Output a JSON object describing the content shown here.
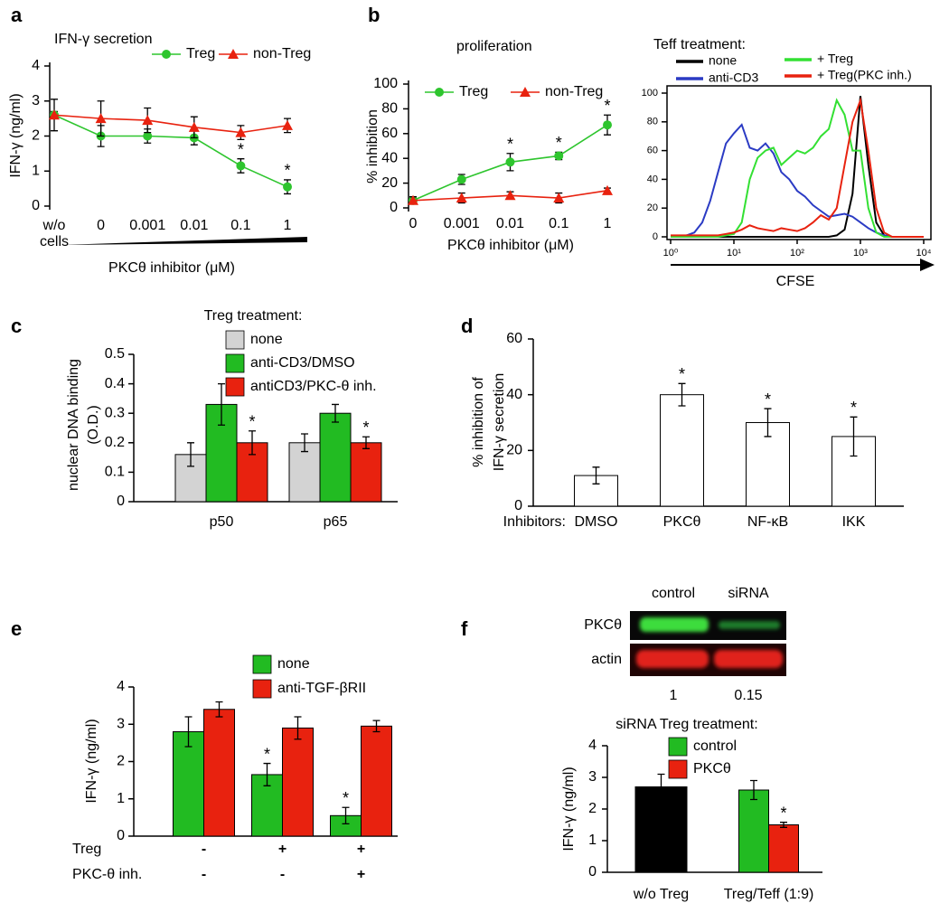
{
  "chart_data": [
    {
      "type": "line",
      "panel": "a",
      "title": "IFN-γ secretion",
      "ylabel": "IFN-γ (ng/ml)",
      "xlabel": "PKCθ inhibitor (μM)",
      "categories": [
        "w/o cells",
        "0",
        "0.001",
        "0.01",
        "0.1",
        "1"
      ],
      "ylim": [
        0,
        4
      ],
      "yticks": [
        0,
        1,
        2,
        3,
        4
      ],
      "series": [
        {
          "name": "Treg",
          "color": "#2ec52e",
          "marker": "circle",
          "values": [
            2.6,
            2.0,
            2.0,
            1.95,
            1.15,
            0.55
          ],
          "errors": [
            0.1,
            0.3,
            0.2,
            0.2,
            0.2,
            0.2
          ]
        },
        {
          "name": "non-Treg",
          "color": "#e8220f",
          "marker": "triangle",
          "values": [
            2.6,
            2.5,
            2.45,
            2.25,
            2.1,
            2.3
          ],
          "errors": [
            0.45,
            0.5,
            0.35,
            0.3,
            0.2,
            0.2
          ]
        }
      ],
      "annotations": [
        {
          "text": "*",
          "series": 0,
          "index": 4
        },
        {
          "text": "*",
          "series": 0,
          "index": 5
        }
      ]
    },
    {
      "type": "line",
      "panel": "b",
      "title": "proliferation",
      "ylabel": "% inhibition",
      "xlabel": "PKCθ inhibitor (μM)",
      "categories": [
        "0",
        "0.001",
        "0.01",
        "0.1",
        "1"
      ],
      "ylim": [
        0,
        100
      ],
      "yticks": [
        0,
        20,
        40,
        60,
        80,
        100
      ],
      "series": [
        {
          "name": "Treg",
          "color": "#2ec52e",
          "marker": "circle",
          "values": [
            6,
            23,
            37,
            42,
            67
          ],
          "errors": [
            3,
            4,
            7,
            3,
            8
          ]
        },
        {
          "name": "non-Treg",
          "color": "#e8220f",
          "marker": "triangle",
          "values": [
            6,
            8,
            10,
            8,
            14
          ],
          "errors": [
            3,
            4,
            3,
            4,
            2
          ]
        }
      ],
      "annotations": [
        {
          "text": "*",
          "series": 0,
          "index": 2
        },
        {
          "text": "*",
          "series": 0,
          "index": 3
        },
        {
          "text": "*",
          "series": 0,
          "index": 4
        }
      ]
    },
    {
      "type": "line",
      "legend_title": "Teff treatment:",
      "xlabel": "CFSE",
      "xscale": "log",
      "xlim": [
        1,
        10000
      ],
      "xticks": [
        {
          "value": 1,
          "label": "10⁰"
        },
        {
          "value": 10,
          "label": "10¹"
        },
        {
          "value": 100,
          "label": "10²"
        },
        {
          "value": 1000,
          "label": "10³"
        },
        {
          "value": 10000,
          "label": "10⁴"
        }
      ],
      "ylim": [
        0,
        100
      ],
      "yticks": [
        0,
        20,
        40,
        60,
        80,
        100
      ],
      "x": [
        1,
        1.33,
        1.78,
        2.37,
        3.16,
        4.22,
        5.62,
        7.5,
        10,
        13.3,
        17.8,
        23.7,
        31.6,
        42.2,
        56.2,
        75,
        100,
        133,
        178,
        237,
        316,
        422,
        562,
        750,
        1000,
        1334,
        1778,
        2371,
        3162,
        4217,
        5623,
        7499,
        10000
      ],
      "series": [
        {
          "name": "none",
          "color": "#000000",
          "values": [
            0,
            0,
            0,
            0,
            0,
            0,
            0,
            0,
            0,
            0,
            0,
            0,
            0,
            0,
            0,
            0,
            0,
            0,
            0,
            0,
            0,
            1,
            5,
            30,
            98,
            50,
            10,
            1,
            0,
            0,
            0,
            0,
            0
          ]
        },
        {
          "name": "anti-CD3",
          "color": "#2b3bc4",
          "values": [
            0,
            0,
            1,
            3,
            10,
            25,
            45,
            65,
            72,
            78,
            62,
            60,
            65,
            58,
            45,
            40,
            32,
            28,
            22,
            18,
            14,
            15,
            16,
            14,
            10,
            6,
            3,
            1,
            0,
            0,
            0,
            0,
            0
          ]
        },
        {
          "name": "+ Treg",
          "color": "#33e033",
          "values": [
            0,
            0,
            0,
            0,
            0,
            0,
            0,
            1,
            2,
            10,
            40,
            55,
            60,
            62,
            50,
            55,
            60,
            58,
            62,
            70,
            75,
            95,
            85,
            60,
            60,
            20,
            3,
            0,
            0,
            0,
            0,
            0,
            0
          ]
        },
        {
          "name": "+ Treg(PKC inh.)",
          "color": "#e8220f",
          "values": [
            1,
            1,
            1,
            1,
            1,
            1,
            1,
            2,
            3,
            5,
            8,
            6,
            5,
            4,
            6,
            5,
            4,
            6,
            10,
            15,
            12,
            20,
            50,
            80,
            95,
            60,
            20,
            3,
            0,
            0,
            0,
            0,
            0
          ]
        }
      ]
    },
    {
      "type": "bar",
      "panel": "c",
      "legend_title": "Treg treatment:",
      "ylabel": [
        "nuclear DNA binding",
        "(O.D.)"
      ],
      "categories": [
        "p50",
        "p65"
      ],
      "ylim": [
        0,
        0.5
      ],
      "yticks": [
        0,
        0.1,
        0.2,
        0.3,
        0.4,
        0.5
      ],
      "series": [
        {
          "name": "none",
          "color": "#d3d3d3",
          "values": [
            0.16,
            0.2
          ],
          "errors": [
            0.04,
            0.03
          ]
        },
        {
          "name": "anti-CD3/DMSO",
          "color": "#22bb22",
          "values": [
            0.33,
            0.3
          ],
          "errors": [
            0.07,
            0.03
          ]
        },
        {
          "name": "antiCD3/PKC-θ inh.",
          "color": "#e8220f",
          "values": [
            0.2,
            0.2
          ],
          "errors": [
            0.04,
            0.02
          ]
        }
      ],
      "annotations": [
        {
          "text": "*",
          "series": 2,
          "index": 0
        },
        {
          "text": "*",
          "series": 2,
          "index": 1
        }
      ]
    },
    {
      "type": "bar",
      "panel": "d",
      "ylabel": [
        "% inhibition  of",
        "IFN-γ secretion"
      ],
      "xlabel": "Inhibitors:",
      "categories": [
        "DMSO",
        "PKCθ",
        "NF-κB",
        "IKK"
      ],
      "ylim": [
        0,
        60
      ],
      "yticks": [
        0,
        20,
        40,
        60
      ],
      "series": [
        {
          "color": "#ffffff",
          "values": [
            11,
            40,
            30,
            25
          ],
          "errors": [
            3,
            4,
            5,
            7
          ]
        }
      ],
      "annotations": [
        {
          "text": "*",
          "series": 0,
          "index": 1
        },
        {
          "text": "*",
          "series": 0,
          "index": 2
        },
        {
          "text": "*",
          "series": 0,
          "index": 3
        }
      ]
    },
    {
      "type": "bar",
      "panel": "e",
      "ylabel": "IFN-γ (ng/ml)",
      "ylim": [
        0,
        4
      ],
      "yticks": [
        0,
        1,
        2,
        3,
        4
      ],
      "series": [
        {
          "name": "none",
          "color": "#22bb22",
          "values": [
            2.8,
            1.65,
            0.55
          ],
          "errors": [
            0.4,
            0.3,
            0.22
          ]
        },
        {
          "name": "anti-TGF-βRII",
          "color": "#e8220f",
          "values": [
            3.4,
            2.9,
            2.95
          ],
          "errors": [
            0.2,
            0.3,
            0.15
          ]
        }
      ],
      "conditions": [
        {
          "label": "Treg",
          "values": [
            "-",
            "+",
            "+"
          ]
        },
        {
          "label": "PKC-θ inh.",
          "values": [
            "-",
            "-",
            "+"
          ]
        }
      ],
      "annotations": [
        {
          "text": "*",
          "series": 0,
          "index": 1
        },
        {
          "text": "*",
          "series": 0,
          "index": 2
        }
      ]
    },
    {
      "type": "bar",
      "panel": "f",
      "blot": {
        "columns": [
          "control",
          "siRNA"
        ],
        "rows": [
          "PKCθ",
          "actin"
        ],
        "quantification": [
          1,
          0.15
        ]
      },
      "legend_title": "siRNA Treg treatment:",
      "ylabel": "IFN-γ  (ng/ml)",
      "categories": [
        "w/o Treg",
        "Treg/Teff (1:9)"
      ],
      "ylim": [
        0,
        4
      ],
      "yticks": [
        0,
        1,
        2,
        3,
        4
      ],
      "series": [
        {
          "color": "#000000",
          "values": [
            2.7,
            null
          ],
          "errors": [
            0.4,
            null
          ]
        },
        {
          "name": "control",
          "color": "#22bb22",
          "values": [
            null,
            2.6
          ],
          "errors": [
            null,
            0.3
          ]
        },
        {
          "name": "PKCθ",
          "color": "#e8220f",
          "values": [
            null,
            1.5
          ],
          "errors": [
            null,
            0.08
          ]
        }
      ],
      "annotations": [
        {
          "text": "*",
          "series": 2,
          "index": 1
        }
      ]
    }
  ]
}
